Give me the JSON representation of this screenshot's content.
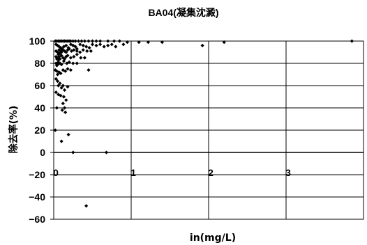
{
  "chart_data": {
    "type": "scatter",
    "title": "BA04(凝集沈澱)",
    "xlabel": "in(mg/L)",
    "ylabel": "除去率(%)",
    "xlim": [
      0,
      4
    ],
    "ylim": [
      -60,
      100
    ],
    "xticks": [
      0,
      1,
      2,
      3
    ],
    "yticks": [
      100,
      80,
      60,
      40,
      20,
      0,
      -20,
      -40,
      -60
    ],
    "grid": true,
    "marker_color": "#000000",
    "series": [
      {
        "points": [
          [
            0.02,
            100
          ],
          [
            0.04,
            100
          ],
          [
            0.06,
            100
          ],
          [
            0.08,
            100
          ],
          [
            0.1,
            100
          ],
          [
            0.12,
            100
          ],
          [
            0.14,
            100
          ],
          [
            0.16,
            100
          ],
          [
            0.18,
            100
          ],
          [
            0.2,
            100
          ],
          [
            0.22,
            100
          ],
          [
            0.25,
            100
          ],
          [
            0.28,
            100
          ],
          [
            0.32,
            100
          ],
          [
            0.36,
            100
          ],
          [
            0.4,
            100
          ],
          [
            0.45,
            100
          ],
          [
            0.5,
            100
          ],
          [
            0.55,
            100
          ],
          [
            0.6,
            100
          ],
          [
            0.7,
            100
          ],
          [
            0.78,
            100
          ],
          [
            0.85,
            100
          ],
          [
            0.95,
            99
          ],
          [
            1.1,
            99
          ],
          [
            1.22,
            99
          ],
          [
            1.4,
            99
          ],
          [
            1.92,
            96
          ],
          [
            2.2,
            99
          ],
          [
            3.85,
            100
          ],
          [
            0.03,
            97
          ],
          [
            0.05,
            96
          ],
          [
            0.07,
            95
          ],
          [
            0.09,
            94
          ],
          [
            0.11,
            93
          ],
          [
            0.13,
            95
          ],
          [
            0.16,
            96
          ],
          [
            0.19,
            94
          ],
          [
            0.22,
            97
          ],
          [
            0.25,
            96
          ],
          [
            0.28,
            95
          ],
          [
            0.3,
            93
          ],
          [
            0.34,
            97
          ],
          [
            0.38,
            96
          ],
          [
            0.42,
            95
          ],
          [
            0.46,
            94
          ],
          [
            0.5,
            97
          ],
          [
            0.55,
            96
          ],
          [
            0.6,
            97
          ],
          [
            0.65,
            95
          ],
          [
            0.7,
            96
          ],
          [
            0.75,
            97
          ],
          [
            0.8,
            95
          ],
          [
            0.9,
            97
          ],
          [
            0.03,
            91
          ],
          [
            0.05,
            90
          ],
          [
            0.06,
            88
          ],
          [
            0.07,
            92
          ],
          [
            0.08,
            89
          ],
          [
            0.09,
            91
          ],
          [
            0.1,
            90
          ],
          [
            0.12,
            92
          ],
          [
            0.14,
            91
          ],
          [
            0.16,
            90
          ],
          [
            0.18,
            92
          ],
          [
            0.2,
            93
          ],
          [
            0.23,
            91
          ],
          [
            0.26,
            92
          ],
          [
            0.3,
            91
          ],
          [
            0.34,
            90
          ],
          [
            0.38,
            92
          ],
          [
            0.43,
            91
          ],
          [
            0.48,
            91
          ],
          [
            0.03,
            86
          ],
          [
            0.04,
            84
          ],
          [
            0.05,
            85
          ],
          [
            0.06,
            83
          ],
          [
            0.07,
            86
          ],
          [
            0.08,
            84
          ],
          [
            0.1,
            87
          ],
          [
            0.12,
            85
          ],
          [
            0.14,
            84
          ],
          [
            0.16,
            86
          ],
          [
            0.18,
            87
          ],
          [
            0.22,
            85
          ],
          [
            0.26,
            86
          ],
          [
            0.3,
            88
          ],
          [
            0.35,
            85
          ],
          [
            0.4,
            85
          ],
          [
            0.03,
            80
          ],
          [
            0.04,
            78
          ],
          [
            0.05,
            79
          ],
          [
            0.06,
            81
          ],
          [
            0.08,
            80
          ],
          [
            0.1,
            79
          ],
          [
            0.13,
            82
          ],
          [
            0.17,
            80
          ],
          [
            0.2,
            81
          ],
          [
            0.25,
            80
          ],
          [
            0.3,
            80
          ],
          [
            0.02,
            74
          ],
          [
            0.04,
            73
          ],
          [
            0.05,
            70
          ],
          [
            0.07,
            72
          ],
          [
            0.09,
            71
          ],
          [
            0.12,
            74
          ],
          [
            0.15,
            73
          ],
          [
            0.18,
            75
          ],
          [
            0.22,
            74
          ],
          [
            0.45,
            74
          ],
          [
            0.03,
            66
          ],
          [
            0.05,
            64
          ],
          [
            0.06,
            60
          ],
          [
            0.08,
            62
          ],
          [
            0.1,
            58
          ],
          [
            0.12,
            60
          ],
          [
            0.14,
            56
          ],
          [
            0.18,
            59
          ],
          [
            0.03,
            54
          ],
          [
            0.06,
            52
          ],
          [
            0.09,
            51
          ],
          [
            0.13,
            50
          ],
          [
            0.16,
            47
          ],
          [
            0.12,
            44
          ],
          [
            0.14,
            40
          ],
          [
            0.11,
            38
          ],
          [
            0.15,
            36
          ],
          [
            0.04,
            40
          ],
          [
            0.02,
            20
          ],
          [
            0.19,
            16
          ],
          [
            0.1,
            10
          ],
          [
            0.25,
            0
          ],
          [
            0.68,
            0
          ],
          [
            0.42,
            -48
          ]
        ]
      }
    ]
  }
}
